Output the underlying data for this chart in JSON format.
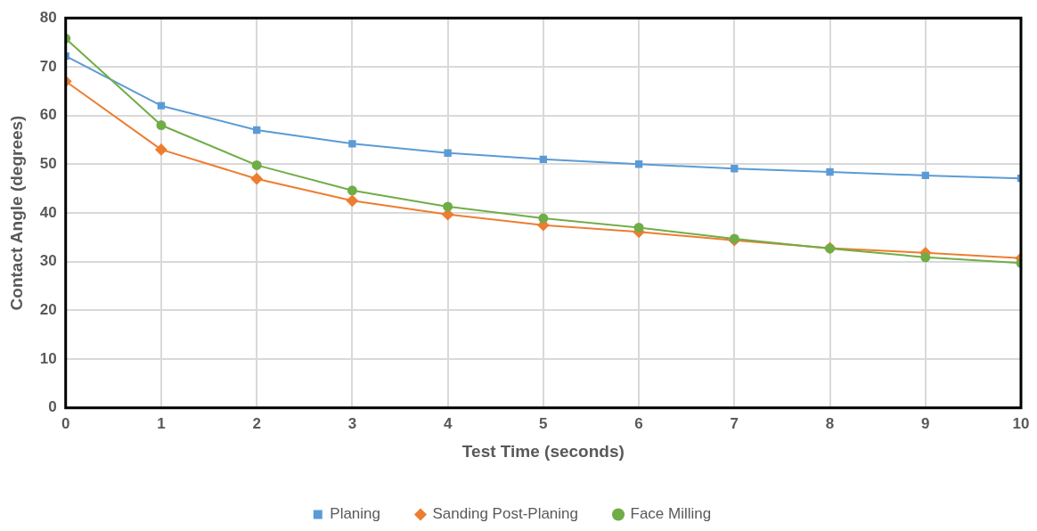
{
  "chart_data": {
    "type": "line",
    "xlabel": "Test Time (seconds)",
    "ylabel": "Contact Angle (degrees)",
    "x": [
      0,
      1,
      2,
      3,
      4,
      5,
      6,
      7,
      8,
      9,
      10
    ],
    "xlim": [
      0,
      10
    ],
    "xticks": [
      0,
      1,
      2,
      3,
      4,
      5,
      6,
      7,
      8,
      9,
      10
    ],
    "ylim": [
      0,
      80
    ],
    "yticks": [
      0,
      10,
      20,
      30,
      40,
      50,
      60,
      70,
      80
    ],
    "grid": true,
    "legend": "bottom",
    "series": [
      {
        "name": "Planing",
        "color": "#5b9bd5",
        "marker": "square",
        "values": [
          72.2,
          62,
          57,
          54.2,
          52.3,
          51,
          50,
          49.1,
          48.4,
          47.7,
          47.1
        ]
      },
      {
        "name": "Sanding Post-Planing",
        "color": "#ed7d31",
        "marker": "diamond",
        "values": [
          67,
          53,
          47,
          42.5,
          39.7,
          37.5,
          36.1,
          34.4,
          32.8,
          31.8,
          30.7
        ]
      },
      {
        "name": "Face Milling",
        "color": "#70ad47",
        "marker": "circle",
        "values": [
          75.8,
          58,
          49.8,
          44.6,
          41.3,
          38.9,
          37,
          34.7,
          32.7,
          30.9,
          29.7
        ]
      }
    ]
  }
}
